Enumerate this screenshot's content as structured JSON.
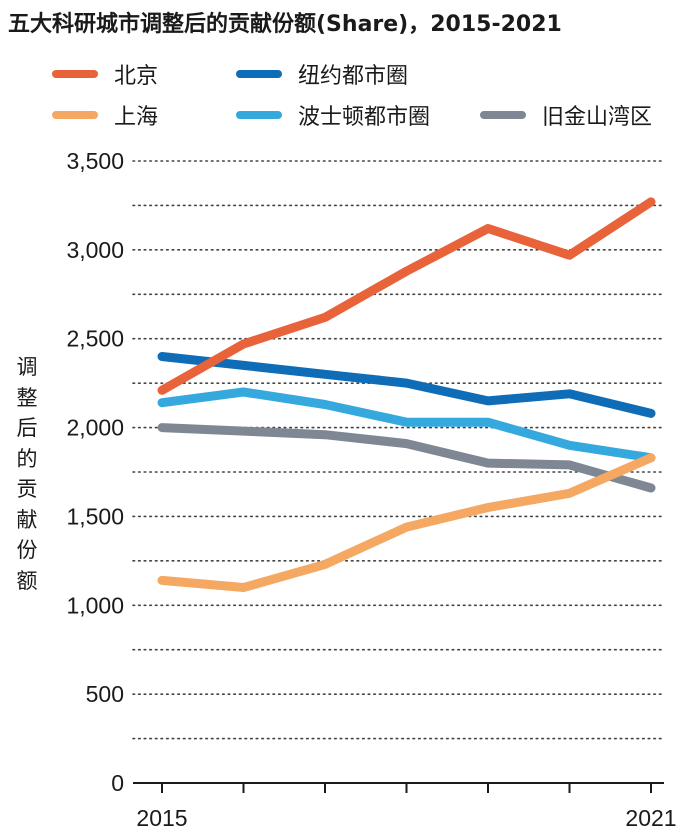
{
  "chart_data": {
    "type": "line",
    "title": "五大科研城市调整后的贡献份额(Share)，2015-2021",
    "xlabel": "",
    "ylabel": "调整后的贡献份额",
    "x": [
      2015,
      2016,
      2017,
      2018,
      2019,
      2020,
      2021
    ],
    "x_tick_labels": [
      "2015",
      "2021"
    ],
    "ylim": [
      0,
      3500
    ],
    "y_ticks": [
      0,
      500,
      1000,
      1500,
      2000,
      2500,
      3000,
      3500
    ],
    "y_tick_labels": [
      "0",
      "500",
      "1,000",
      "1,500",
      "2,000",
      "2,500",
      "3,000",
      "3,500"
    ],
    "grid": "horizontal dotted",
    "legend_position": "top",
    "series": [
      {
        "name": "北京",
        "color": "#e8623a",
        "values": [
          2210,
          2470,
          2620,
          2880,
          3120,
          2970,
          3270
        ]
      },
      {
        "name": "纽约都市圈",
        "color": "#0f6cb6",
        "values": [
          2400,
          2350,
          2300,
          2250,
          2150,
          2190,
          2080
        ]
      },
      {
        "name": "上海",
        "color": "#f5a862",
        "values": [
          1140,
          1100,
          1230,
          1440,
          1550,
          1630,
          1830
        ]
      },
      {
        "name": "波士顿都市圈",
        "color": "#35a9dd",
        "values": [
          2140,
          2200,
          2130,
          2030,
          2030,
          1900,
          1830
        ]
      },
      {
        "name": "旧金山湾区",
        "color": "#7e8793",
        "values": [
          2000,
          1980,
          1960,
          1910,
          1800,
          1790,
          1660
        ]
      }
    ]
  }
}
